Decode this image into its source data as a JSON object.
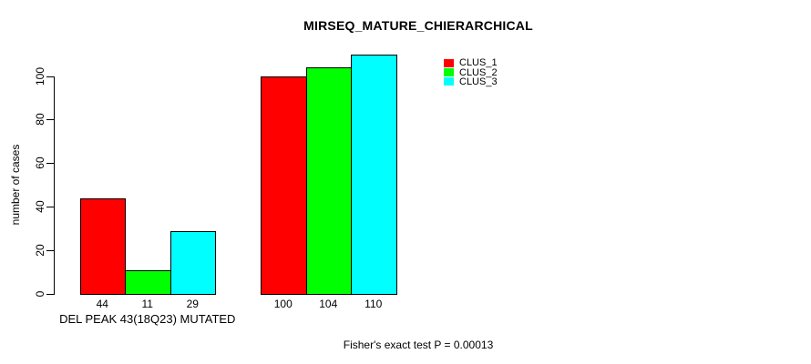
{
  "chart_data": {
    "type": "bar",
    "title": "MIRSEQ_MATURE_CHIERARCHICAL",
    "ylabel": "number of cases",
    "xlabel": "",
    "yticks": [
      0,
      20,
      40,
      60,
      80,
      100
    ],
    "ylim": [
      0,
      110
    ],
    "grid": false,
    "legend_position": "top-right",
    "series": [
      {
        "name": "CLUS_1",
        "color": "#ff0000",
        "values": [
          44,
          100
        ]
      },
      {
        "name": "CLUS_2",
        "color": "#00ff00",
        "values": [
          11,
          104
        ]
      },
      {
        "name": "CLUS_3",
        "color": "#00ffff",
        "values": [
          29,
          110
        ]
      }
    ],
    "groups": [
      {
        "label": "DEL PEAK 43(18Q23) MUTATED",
        "values": [
          44,
          11,
          29
        ]
      },
      {
        "label": "",
        "values": [
          100,
          104,
          110
        ]
      }
    ],
    "bar_border_color": "#000000",
    "background": "#ffffff",
    "footnote": "Fisher's exact test P = 0.00013"
  }
}
